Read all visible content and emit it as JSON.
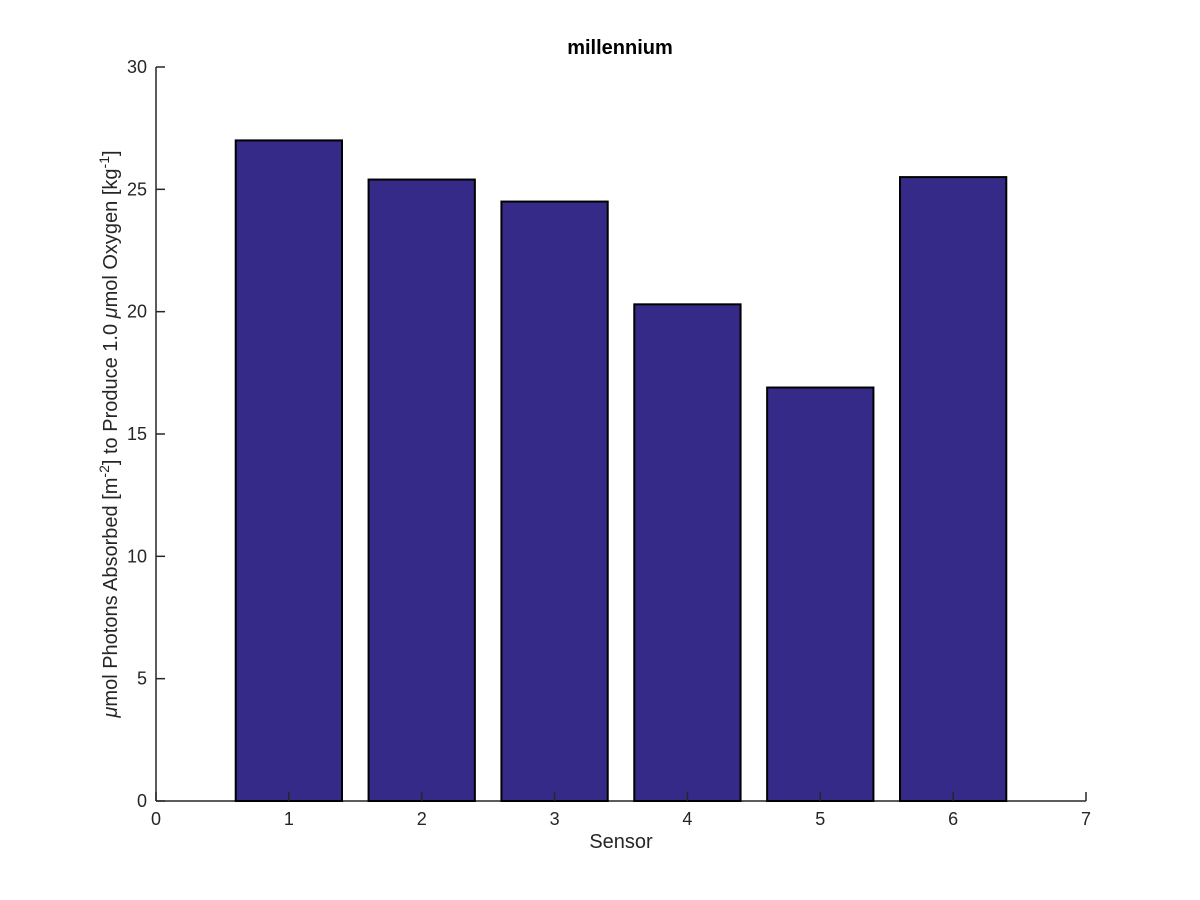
{
  "chart_data": {
    "type": "bar",
    "title": "millennium",
    "xlabel": "Sensor",
    "ylabel": {
      "parts": [
        {
          "text": "μ",
          "style": "italic"
        },
        {
          "text": "mol Photons Absorbed [m"
        },
        {
          "text": "-2",
          "style": "sup"
        },
        {
          "text": "] to Produce 1.0 "
        },
        {
          "text": "μ",
          "style": "italic"
        },
        {
          "text": "mol Oxygen [kg"
        },
        {
          "text": "-1",
          "style": "sup"
        },
        {
          "text": "]"
        }
      ]
    },
    "categories": [
      1,
      2,
      3,
      4,
      5,
      6
    ],
    "values": [
      27.0,
      25.4,
      24.5,
      20.3,
      16.9,
      25.5
    ],
    "bar_width": 0.8,
    "xlim": [
      0,
      7
    ],
    "ylim": [
      0,
      30
    ],
    "xticks": [
      0,
      1,
      2,
      3,
      4,
      5,
      6,
      7
    ],
    "yticks": [
      0,
      5,
      10,
      15,
      20,
      25,
      30
    ],
    "grid": false,
    "legend": null,
    "colors": {
      "bar_fill": "#352a87",
      "bar_edge": "#000000",
      "axis": "#262626",
      "text": "#262626"
    }
  }
}
